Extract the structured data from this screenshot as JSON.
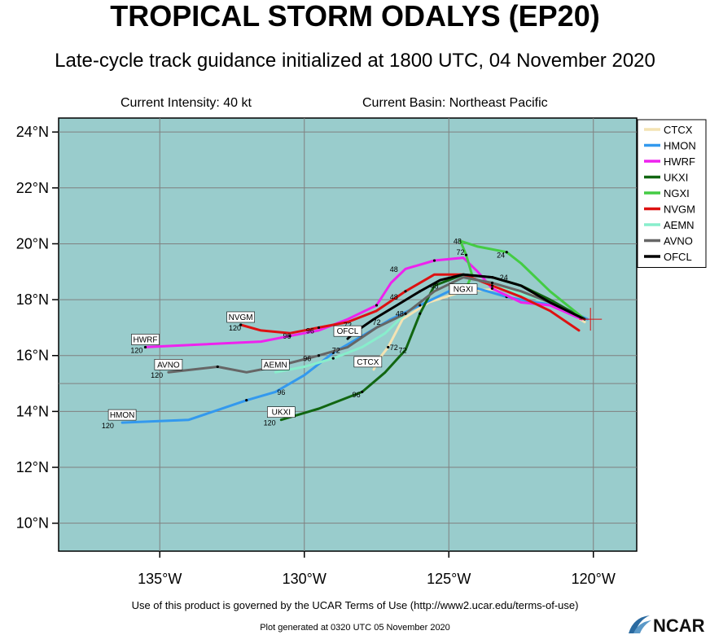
{
  "header": {
    "title": "TROPICAL STORM ODALYS (EP20)",
    "subtitle": "Late-cycle track guidance initialized at 1800 UTC, 04 November 2020",
    "intensity": "Current Intensity: 40 kt",
    "basin": "Current Basin: Northeast Pacific"
  },
  "footer": {
    "terms": "Use of this product is governed by the UCAR Terms of Use (http://www2.ucar.edu/terms-of-use)",
    "generated": "Plot generated at 0320 UTC   05 November 2020",
    "logo_text": "NCAR"
  },
  "map_data": {
    "lon_range": [
      -138.5,
      -118.5
    ],
    "lat_range": [
      9.0,
      24.5
    ],
    "lon_ticks": [
      -135,
      -130,
      -125,
      -120
    ],
    "lon_tick_labels": [
      "135°W",
      "130°W",
      "125°W",
      "120°W"
    ],
    "lat_ticks": [
      10,
      12,
      14,
      16,
      18,
      20,
      22,
      24
    ],
    "lat_tick_labels": [
      "10°N",
      "12°N",
      "14°N",
      "16°N",
      "18°N",
      "20°N",
      "22°N",
      "24°N"
    ],
    "grid_lon": [
      -135,
      -130,
      -125,
      -120
    ],
    "grid_lat": [
      15
    ],
    "ocean_color": "#99cccc",
    "initial_position": [
      -120.1,
      17.3
    ],
    "models": [
      {
        "name": "CTCX",
        "color": "#f4e3b3",
        "label_at": [
          -127.8,
          15.5
        ],
        "end_label": "CTCX",
        "points": [
          [
            -120.3,
            17.2
          ],
          [
            -121.5,
            18.0
          ],
          [
            -123.0,
            18.4
          ],
          [
            -124.5,
            18.3
          ],
          [
            -125.7,
            17.9
          ],
          [
            -126.6,
            17.3
          ],
          [
            -127.1,
            16.3
          ],
          [
            -127.4,
            15.9
          ],
          [
            -127.6,
            15.5
          ]
        ],
        "hour_labels": [
          {
            "h": "72",
            "at": [
              -126.9,
              16.2
            ]
          }
        ]
      },
      {
        "name": "HMON",
        "color": "#3399ee",
        "label_at": [
          -136.3,
          13.6
        ],
        "end_label": "HMON",
        "points": [
          [
            -120.2,
            17.3
          ],
          [
            -121.2,
            17.8
          ],
          [
            -122.0,
            17.9
          ],
          [
            -123.0,
            18.1
          ],
          [
            -124.0,
            18.4
          ],
          [
            -125.0,
            18.3
          ],
          [
            -126.0,
            17.8
          ],
          [
            -127.0,
            17.3
          ],
          [
            -128.0,
            16.7
          ],
          [
            -129.0,
            16.1
          ],
          [
            -130.0,
            15.3
          ],
          [
            -131.0,
            14.7
          ],
          [
            -132.0,
            14.4
          ],
          [
            -134.0,
            13.7
          ],
          [
            -136.3,
            13.6
          ]
        ],
        "hour_labels": [
          {
            "h": "96",
            "at": [
              -130.8,
              14.6
            ]
          },
          {
            "h": "120",
            "at": [
              -136.8,
              13.4
            ]
          }
        ]
      },
      {
        "name": "HWRF",
        "color": "#ee22ee",
        "label_at": [
          -135.5,
          16.3
        ],
        "end_label": "HWRF",
        "points": [
          [
            -120.4,
            17.3
          ],
          [
            -121.5,
            17.8
          ],
          [
            -122.5,
            17.9
          ],
          [
            -123.5,
            18.4
          ],
          [
            -124.0,
            19.0
          ],
          [
            -124.5,
            19.5
          ],
          [
            -125.5,
            19.4
          ],
          [
            -126.5,
            19.1
          ],
          [
            -127.0,
            18.6
          ],
          [
            -127.5,
            17.8
          ],
          [
            -128.5,
            17.3
          ],
          [
            -129.5,
            16.9
          ],
          [
            -130.5,
            16.7
          ],
          [
            -131.5,
            16.5
          ],
          [
            -133.5,
            16.4
          ],
          [
            -135.5,
            16.3
          ]
        ],
        "hour_labels": [
          {
            "h": "48",
            "at": [
              -126.9,
              19.0
            ]
          },
          {
            "h": "72",
            "at": [
              -124.6,
              19.6
            ]
          },
          {
            "h": "96",
            "at": [
              -130.6,
              16.6
            ]
          },
          {
            "h": "120",
            "at": [
              -135.8,
              16.1
            ]
          }
        ]
      },
      {
        "name": "UKXI",
        "color": "#116611",
        "label_at": [
          -130.8,
          13.7
        ],
        "end_label": "UKXI",
        "points": [
          [
            -120.3,
            17.3
          ],
          [
            -121.5,
            18.0
          ],
          [
            -122.5,
            18.5
          ],
          [
            -123.5,
            18.8
          ],
          [
            -124.5,
            18.9
          ],
          [
            -125.5,
            18.5
          ],
          [
            -126.0,
            17.5
          ],
          [
            -126.5,
            16.2
          ],
          [
            -127.2,
            15.4
          ],
          [
            -128.0,
            14.7
          ],
          [
            -129.5,
            14.1
          ],
          [
            -130.8,
            13.7
          ]
        ],
        "hour_labels": [
          {
            "h": "72",
            "at": [
              -126.6,
              16.1
            ]
          },
          {
            "h": "96",
            "at": [
              -128.2,
              14.5
            ]
          },
          {
            "h": "120",
            "at": [
              -131.2,
              13.5
            ]
          }
        ]
      },
      {
        "name": "NGXI",
        "color": "#44cc44",
        "label_at": [
          -124.5,
          18.1
        ],
        "end_label": "NGXI",
        "points": [
          [
            -120.3,
            17.3
          ],
          [
            -121.5,
            18.3
          ],
          [
            -122.5,
            19.3
          ],
          [
            -123.0,
            19.7
          ],
          [
            -124.0,
            19.9
          ],
          [
            -124.6,
            20.1
          ],
          [
            -124.4,
            19.6
          ],
          [
            -124.2,
            18.9
          ],
          [
            -124.4,
            18.4
          ]
        ],
        "hour_labels": [
          {
            "h": "48",
            "at": [
              -124.7,
              20.0
            ]
          },
          {
            "h": "24",
            "at": [
              -123.2,
              19.5
            ]
          }
        ]
      },
      {
        "name": "NVGM",
        "color": "#dd1111",
        "label_at": [
          -132.2,
          17.1
        ],
        "end_label": "NVGM",
        "points": [
          [
            -120.5,
            16.9
          ],
          [
            -121.5,
            17.6
          ],
          [
            -122.5,
            18.1
          ],
          [
            -123.5,
            18.5
          ],
          [
            -124.5,
            18.9
          ],
          [
            -125.5,
            18.9
          ],
          [
            -126.5,
            18.3
          ],
          [
            -127.5,
            17.6
          ],
          [
            -128.5,
            17.2
          ],
          [
            -129.5,
            17.0
          ],
          [
            -130.5,
            16.8
          ],
          [
            -131.5,
            16.9
          ],
          [
            -132.2,
            17.1
          ]
        ],
        "hour_labels": [
          {
            "h": "48",
            "at": [
              -126.9,
              18.0
            ]
          },
          {
            "h": "72",
            "at": [
              -128.5,
              17.0
            ]
          },
          {
            "h": "96",
            "at": [
              -129.8,
              16.8
            ]
          },
          {
            "h": "120",
            "at": [
              -132.4,
              16.9
            ]
          }
        ]
      },
      {
        "name": "AEMN",
        "color": "#88eecc",
        "label_at": [
          -131.0,
          15.4
        ],
        "end_label": "AEMN",
        "points": [
          [
            -120.3,
            17.3
          ],
          [
            -121.5,
            17.9
          ],
          [
            -122.5,
            18.2
          ],
          [
            -123.5,
            18.6
          ],
          [
            -124.5,
            18.8
          ],
          [
            -125.5,
            18.3
          ],
          [
            -126.5,
            17.5
          ],
          [
            -127.2,
            16.8
          ],
          [
            -128.0,
            16.3
          ],
          [
            -129.0,
            15.9
          ],
          [
            -130.0,
            15.6
          ],
          [
            -131.0,
            15.4
          ]
        ],
        "hour_labels": []
      },
      {
        "name": "AVNO",
        "color": "#666666",
        "label_at": [
          -134.7,
          15.4
        ],
        "end_label": "AVNO",
        "points": [
          [
            -120.3,
            17.3
          ],
          [
            -121.5,
            17.9
          ],
          [
            -122.5,
            18.3
          ],
          [
            -123.5,
            18.6
          ],
          [
            -124.5,
            18.8
          ],
          [
            -125.5,
            18.3
          ],
          [
            -126.5,
            17.5
          ],
          [
            -127.5,
            17.0
          ],
          [
            -128.5,
            16.3
          ],
          [
            -129.5,
            16.0
          ],
          [
            -131.0,
            15.6
          ],
          [
            -132.0,
            15.4
          ],
          [
            -133.0,
            15.6
          ],
          [
            -134.7,
            15.4
          ]
        ],
        "hour_labels": [
          {
            "h": "48",
            "at": [
              -126.7,
              17.4
            ]
          },
          {
            "h": "72",
            "at": [
              -128.9,
              16.1
            ]
          },
          {
            "h": "96",
            "at": [
              -129.9,
              15.8
            ]
          },
          {
            "h": "120",
            "at": [
              -135.1,
              15.2
            ]
          }
        ]
      },
      {
        "name": "OFCL",
        "color": "#000000",
        "label_at": [
          -128.5,
          16.6
        ],
        "end_label": "OFCL",
        "points": [
          [
            -120.3,
            17.3
          ],
          [
            -121.5,
            17.9
          ],
          [
            -122.5,
            18.5
          ],
          [
            -123.5,
            18.8
          ],
          [
            -124.5,
            18.9
          ],
          [
            -125.3,
            18.7
          ],
          [
            -126.0,
            18.3
          ],
          [
            -126.8,
            17.8
          ],
          [
            -127.6,
            17.3
          ],
          [
            -128.3,
            16.8
          ],
          [
            -128.5,
            16.6
          ]
        ],
        "hour_labels": [
          {
            "h": "24",
            "at": [
              -123.1,
              18.7
            ]
          },
          {
            "h": "48",
            "at": [
              -125.5,
              18.4
            ]
          },
          {
            "h": "72",
            "at": [
              -127.5,
              17.1
            ]
          }
        ]
      }
    ]
  }
}
